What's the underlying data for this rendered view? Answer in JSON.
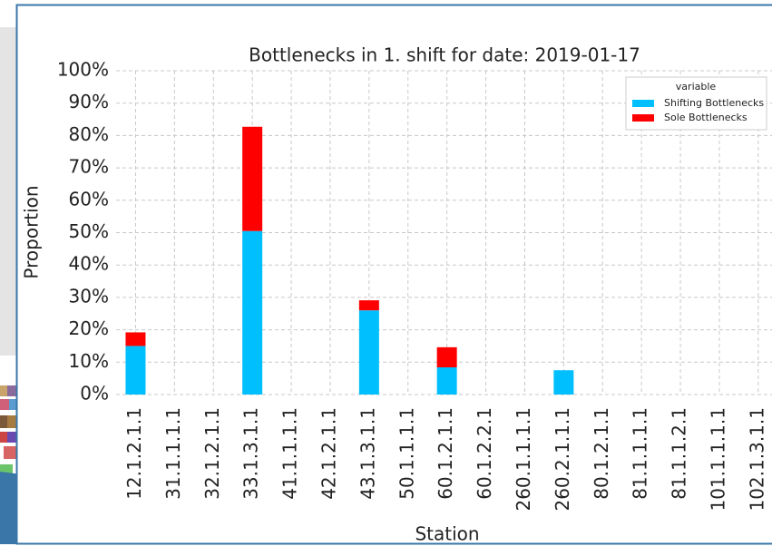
{
  "chart_data": {
    "type": "stacked-bar",
    "title": "Bottlenecks in 1. shift  for date: 2019-01-17",
    "xlabel": "Station",
    "ylabel": "Proportion",
    "legend_title": "variable",
    "legend_position": "upper right",
    "grid": true,
    "categories": [
      "12.1.2.1.1",
      "31.1.1.1.1",
      "32.1.2.1.1",
      "33.1.3.1.1",
      "41.1.1.1.1",
      "42.1.2.1.1",
      "43.1.3.1.1",
      "50.1.1.1.1",
      "60.1.2.1.1",
      "60.1.2.2.1",
      "260.1.1.1.1",
      "260.2.1.1.1",
      "80.1.2.1.1",
      "81.1.1.1.1",
      "81.1.1.2.1",
      "101.1.1.1.1",
      "102.1.3.1.1"
    ],
    "series": [
      {
        "name": "Shifting Bottlenecks",
        "color": "#00bfff",
        "values": [
          15,
          0,
          0,
          50.5,
          0,
          0,
          26,
          0,
          8.4,
          0,
          0,
          7.5,
          0,
          0,
          0,
          0,
          0
        ]
      },
      {
        "name": "Sole Bottlenecks",
        "color": "#ff0000",
        "values": [
          4.2,
          0,
          0,
          32.2,
          0,
          0,
          3.1,
          0,
          6.2,
          0,
          0,
          0,
          0,
          0,
          0,
          0,
          0
        ]
      }
    ],
    "ylim": [
      0,
      100
    ],
    "yticks": [
      {
        "value": 0,
        "label": "0%"
      },
      {
        "value": 10,
        "label": "10%"
      },
      {
        "value": 20,
        "label": "20%"
      },
      {
        "value": 30,
        "label": "30%"
      },
      {
        "value": 40,
        "label": "40%"
      },
      {
        "value": 50,
        "label": "50%"
      },
      {
        "value": 60,
        "label": "60%"
      },
      {
        "value": 70,
        "label": "70%"
      },
      {
        "value": 80,
        "label": "80%"
      },
      {
        "value": 90,
        "label": "90%"
      },
      {
        "value": 100,
        "label": "100%"
      }
    ]
  }
}
